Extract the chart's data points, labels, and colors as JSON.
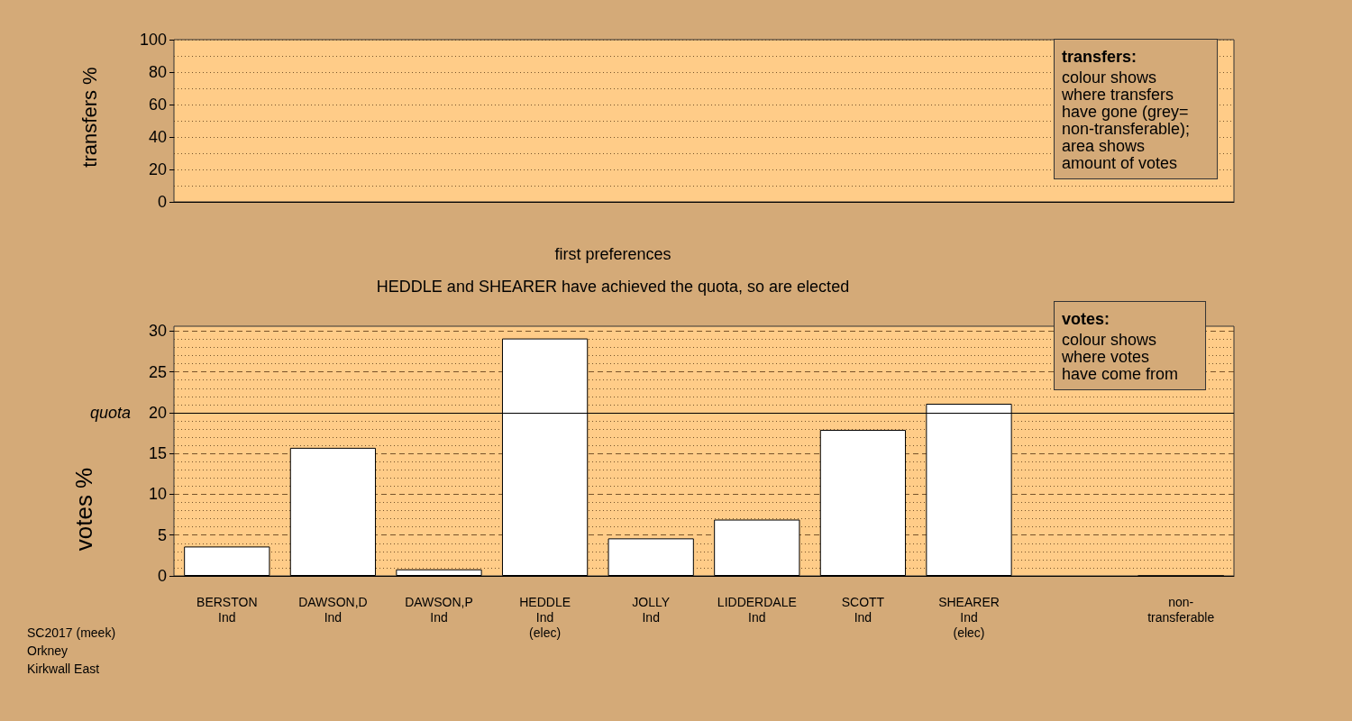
{
  "chart_data": [
    {
      "type": "bar",
      "ylabel": "transfers %",
      "categories": [
        null,
        null,
        null,
        null,
        null,
        null,
        null,
        null,
        null,
        null
      ],
      "values": [
        null,
        null,
        null,
        null,
        null,
        null,
        null,
        null,
        null,
        null
      ],
      "ylim": [
        0,
        100
      ],
      "yticks": [
        0,
        20,
        40,
        60,
        80,
        100
      ],
      "grid": true,
      "tick_labels": "y",
      "annotations": [
        "transfers:\ncolour shows\nwhere transfers\nhave gone (grey=\nnon-transferable);\narea shows\namount of votes"
      ]
    },
    {
      "type": "bar",
      "title": "first preferences",
      "subtitle": "HEDDLE and SHEARER have achieved the quota, so are elected",
      "ylabel": "votes %",
      "categories": [
        "BERSTON\nInd",
        "DAWSON,D\nInd",
        "DAWSON,P\nInd",
        "HEDDLE\nInd\n(elec)",
        "JOLLY\nInd",
        "LIDDERDALE\nInd",
        "SCOTT\nInd",
        "SHEARER\nInd\n(elec)",
        null,
        "non-\ntransferable"
      ],
      "values": [
        3.6,
        15.7,
        0.8,
        29.1,
        4.6,
        6.9,
        17.9,
        21.1,
        null,
        0
      ],
      "color": "#ffffff",
      "ylim": [
        0,
        30.6
      ],
      "yticks": [
        0,
        5,
        10,
        15,
        20,
        25,
        30
      ],
      "grid": true,
      "ref_lines": [
        {
          "axis": "y",
          "value": 20,
          "label": "quota",
          "color": "#000000"
        }
      ],
      "annotations": [
        "votes:\ncolour shows\nwhere votes\nhave come from",
        "SC2017 (meek)\nOrkney\nKirkwall East"
      ]
    }
  ]
}
